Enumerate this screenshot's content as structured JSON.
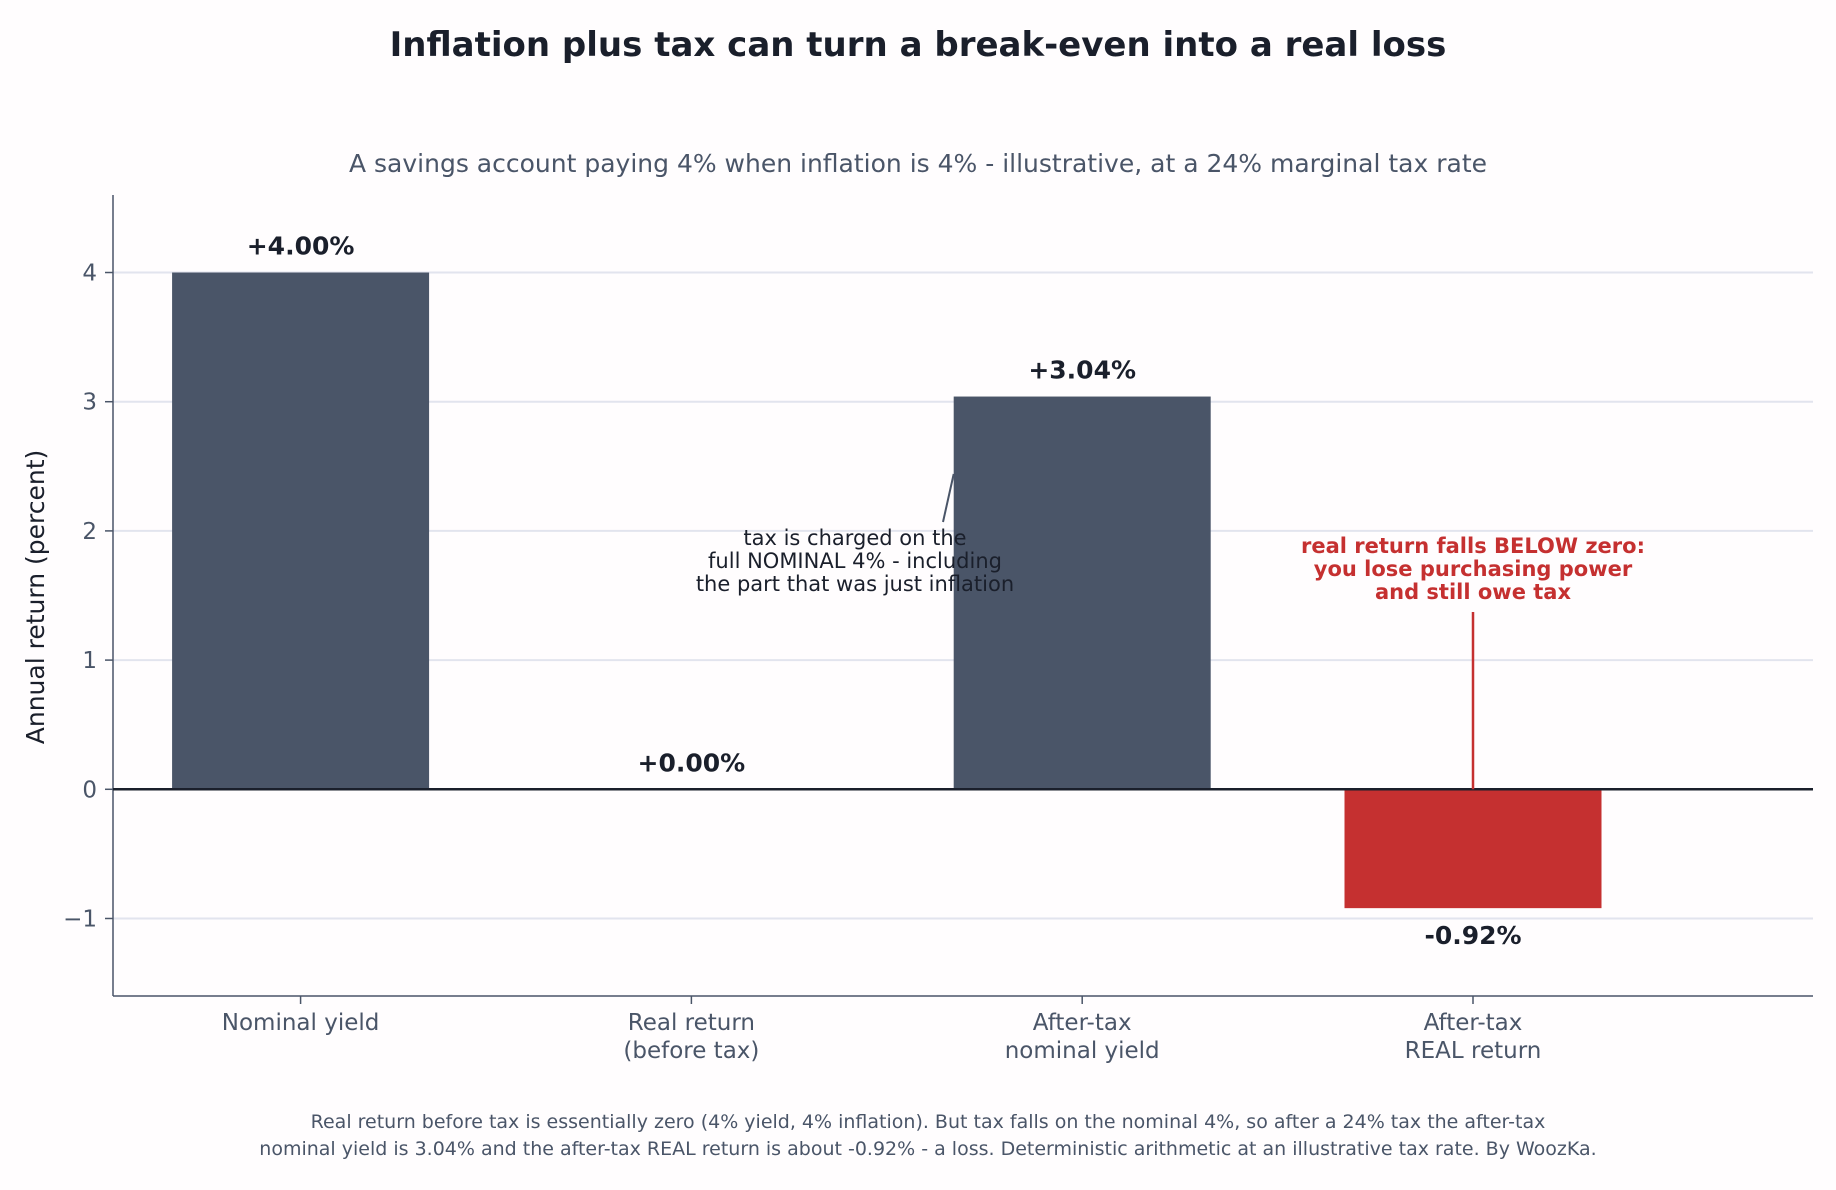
{
  "chart_data": {
    "type": "bar",
    "title": "Inflation plus tax can turn a break-even into a real loss",
    "subtitle": "A savings account paying 4% when inflation is 4% - illustrative, at a 24% marginal tax rate",
    "ylabel": "Annual return (percent)",
    "xlabel": "",
    "ylim": [
      -1.6,
      4.6
    ],
    "yticks": [
      -1,
      0,
      1,
      2,
      3,
      4
    ],
    "ytick_labels": [
      "−1",
      "0",
      "1",
      "2",
      "3",
      "4"
    ],
    "grid": true,
    "categories": [
      [
        "Nominal yield"
      ],
      [
        "Real return",
        "(before tax)"
      ],
      [
        "After-tax",
        "nominal yield"
      ],
      [
        "After-tax",
        "REAL return"
      ]
    ],
    "values": [
      4.0,
      0.0,
      3.04,
      -0.92
    ],
    "value_labels": [
      "+4.00%",
      "+0.00%",
      "+3.04%",
      "-0.92%"
    ],
    "colors": [
      "#4a5568",
      "#4a5568",
      "#4a5568",
      "#c53030"
    ],
    "annotations": [
      {
        "lines": [
          "tax is charged on the",
          "full NOMINAL 4% - including",
          "the part that was just inflation"
        ],
        "color": "#1a1f2b"
      },
      {
        "lines": [
          "real return falls BELOW zero:",
          "you lose purchasing power",
          "and still owe tax"
        ],
        "color": "#c53030"
      }
    ],
    "footer": [
      "Real return before tax is essentially zero (4% yield, 4% inflation). But tax falls on the nominal 4%, so after a 24% tax the after-tax",
      "nominal yield is 3.04% and the after-tax REAL return is about -0.92% - a loss. Deterministic arithmetic at an illustrative tax rate. By WoozKa."
    ]
  }
}
